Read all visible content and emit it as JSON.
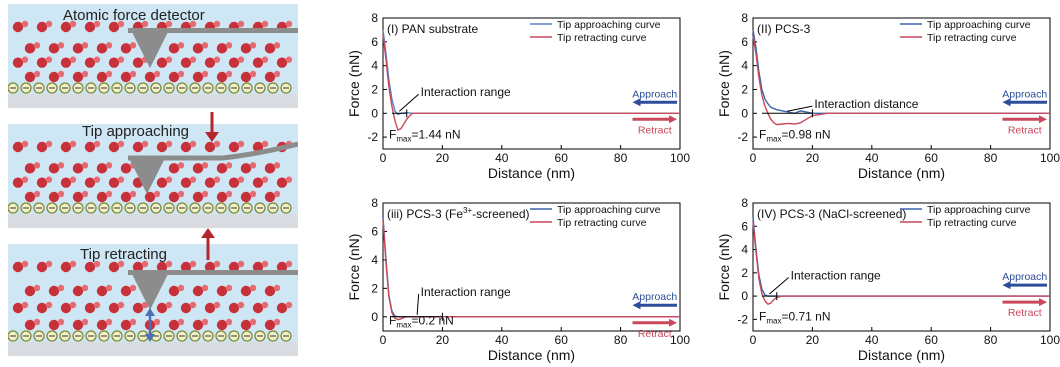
{
  "schematic": {
    "panels": [
      {
        "label": "Atomic force detector"
      },
      {
        "label": "Tip approaching",
        "arrow": "down"
      },
      {
        "label": "Tip retracting",
        "arrow": "up"
      }
    ],
    "colors": {
      "particle": "#c8313a",
      "membrane": "#d9dde2",
      "water": "#cfe6f5",
      "tip": "#8c8c8c",
      "arrow": "#b3262e",
      "layer_ring": "#7a8a3a",
      "layer_fill": "#f3f0c8"
    }
  },
  "chart_data": [
    {
      "type": "line",
      "panel_label": "(I) PAN substrate",
      "xlabel": "Distance (nm)",
      "ylabel": "Force (nN)",
      "xlim": [
        0,
        100
      ],
      "ylim": [
        -3,
        8
      ],
      "xticks": [
        0,
        20,
        40,
        60,
        80,
        100
      ],
      "yticks": [
        -2,
        0,
        2,
        4,
        6,
        8
      ],
      "legend": [
        "Tip approaching curve",
        "Tip retracting curve"
      ],
      "series": [
        {
          "name": "Tip approaching curve",
          "color": "#5b82c4",
          "x": [
            0,
            1,
            2,
            3,
            4,
            5,
            6,
            8,
            10,
            15,
            20,
            40,
            60,
            80,
            100
          ],
          "y": [
            7.0,
            5.0,
            2.8,
            1.2,
            0.2,
            -0.1,
            0.0,
            0.05,
            0.0,
            0.0,
            0.0,
            0.0,
            0.0,
            0.0,
            0.0
          ]
        },
        {
          "name": "Tip retracting curve",
          "color": "#c9485b",
          "x": [
            0,
            1,
            2,
            3,
            4,
            5,
            6,
            7,
            8,
            9,
            10,
            12,
            15,
            20,
            40,
            60,
            80,
            100
          ],
          "y": [
            6.6,
            4.5,
            2.2,
            0.6,
            -0.6,
            -1.4,
            -1.3,
            -0.9,
            -0.5,
            -0.2,
            0.0,
            0.0,
            0.0,
            0.0,
            0.0,
            0.0,
            0.0,
            0.0
          ]
        }
      ],
      "annotations": {
        "range_label": "Interaction range",
        "fmax_label": "F",
        "fmax_sub": "max",
        "fmax_value": "=1.44 nN",
        "approach": "Approach",
        "retract": "Retract"
      }
    },
    {
      "type": "line",
      "panel_label": "(II) PCS-3",
      "xlabel": "Distance (nm)",
      "ylabel": "Force (nN)",
      "xlim": [
        0,
        100
      ],
      "ylim": [
        -3,
        8
      ],
      "xticks": [
        0,
        20,
        40,
        60,
        80,
        100
      ],
      "yticks": [
        -2,
        0,
        2,
        4,
        6,
        8
      ],
      "legend": [
        "Tip approaching curve",
        "Tip retracting curve"
      ],
      "series": [
        {
          "name": "Tip approaching curve",
          "color": "#3c63ad",
          "x": [
            0,
            1,
            2,
            3,
            4,
            5,
            6,
            8,
            10,
            12,
            14,
            16,
            18,
            20,
            40,
            60,
            80,
            100
          ],
          "y": [
            7.0,
            5.5,
            3.5,
            2.0,
            1.2,
            0.8,
            0.5,
            0.3,
            0.2,
            0.1,
            0.0,
            0.2,
            0.1,
            0.0,
            0.0,
            0.0,
            0.0,
            0.0
          ]
        },
        {
          "name": "Tip retracting curve",
          "color": "#c9485b",
          "x": [
            0,
            1,
            2,
            3,
            4,
            5,
            6,
            7,
            8,
            10,
            12,
            14,
            16,
            18,
            20,
            25,
            40,
            60,
            80,
            100
          ],
          "y": [
            6.5,
            5.0,
            3.0,
            1.5,
            0.6,
            0.0,
            -0.5,
            -0.8,
            -0.95,
            -0.9,
            -0.85,
            -0.9,
            -0.8,
            -0.5,
            -0.2,
            0.0,
            0.0,
            0.0,
            0.0,
            0.0
          ]
        }
      ],
      "annotations": {
        "range_label": "Interaction distance",
        "fmax_label": "F",
        "fmax_sub": "max",
        "fmax_value": "=0.98 nN",
        "approach": "Approach",
        "retract": "Retract"
      }
    },
    {
      "type": "line",
      "panel_label": "(iii) PCS-3 (Fe",
      "panel_label_sup": "3+",
      "panel_label_end": "-screened)",
      "xlabel": "Distance (nm)",
      "ylabel": "Force (nN)",
      "xlim": [
        0,
        100
      ],
      "ylim": [
        -1,
        8
      ],
      "xticks": [
        0,
        20,
        40,
        60,
        80,
        100
      ],
      "yticks": [
        0,
        2,
        4,
        6,
        8
      ],
      "legend": [
        "Tip approaching curve",
        "Tip retracting curve"
      ],
      "series": [
        {
          "name": "Tip approaching curve",
          "color": "#3c63ad",
          "x": [
            0,
            1,
            2,
            3,
            4,
            5,
            6,
            8,
            10,
            20,
            40,
            60,
            80,
            100
          ],
          "y": [
            7.0,
            4.0,
            1.5,
            0.4,
            0.05,
            0.0,
            0.0,
            0.0,
            0.0,
            0.0,
            0.0,
            0.0,
            0.0,
            0.0
          ]
        },
        {
          "name": "Tip retracting curve",
          "color": "#c9485b",
          "x": [
            0,
            1,
            2,
            3,
            4,
            5,
            6,
            7,
            8,
            10,
            20,
            40,
            60,
            80,
            100
          ],
          "y": [
            6.8,
            3.8,
            1.4,
            0.3,
            -0.1,
            -0.2,
            -0.15,
            -0.05,
            0.0,
            0.0,
            0.0,
            0.0,
            0.0,
            0.0,
            0.0
          ]
        }
      ],
      "annotations": {
        "range_label": "Interaction range",
        "fmax_label": "F",
        "fmax_sub": "max",
        "fmax_value": "=0.2 nN",
        "approach": "Approach",
        "retract": "Retract"
      }
    },
    {
      "type": "line",
      "panel_label": "(IV) PCS-3 (NaCl-screened)",
      "xlabel": "Distance (nm)",
      "ylabel": "Force (nN)",
      "xlim": [
        0,
        100
      ],
      "ylim": [
        -3,
        8
      ],
      "xticks": [
        0,
        20,
        40,
        60,
        80,
        100
      ],
      "yticks": [
        -2,
        0,
        2,
        4,
        6,
        8
      ],
      "legend": [
        "Tip approaching curve",
        "Tip retracting curve"
      ],
      "series": [
        {
          "name": "Tip approaching curve",
          "color": "#3c63ad",
          "x": [
            0,
            1,
            2,
            3,
            4,
            5,
            6,
            8,
            10,
            20,
            40,
            60,
            80,
            100
          ],
          "y": [
            6.8,
            4.0,
            1.8,
            0.6,
            0.1,
            0.0,
            0.0,
            0.0,
            0.0,
            0.0,
            0.0,
            0.0,
            0.0,
            0.0
          ]
        },
        {
          "name": "Tip retracting curve",
          "color": "#c9485b",
          "x": [
            0,
            1,
            2,
            3,
            4,
            5,
            6,
            7,
            8,
            10,
            20,
            40,
            60,
            80,
            100
          ],
          "y": [
            6.4,
            3.8,
            1.5,
            0.2,
            -0.4,
            -0.7,
            -0.6,
            -0.3,
            -0.1,
            0.0,
            0.0,
            0.0,
            0.0,
            0.0,
            0.0
          ]
        }
      ],
      "annotations": {
        "range_label": "Interaction range",
        "fmax_label": "F",
        "fmax_sub": "max",
        "fmax_value": "=0.71 nN",
        "approach": "Approach",
        "retract": "Retract"
      }
    }
  ]
}
